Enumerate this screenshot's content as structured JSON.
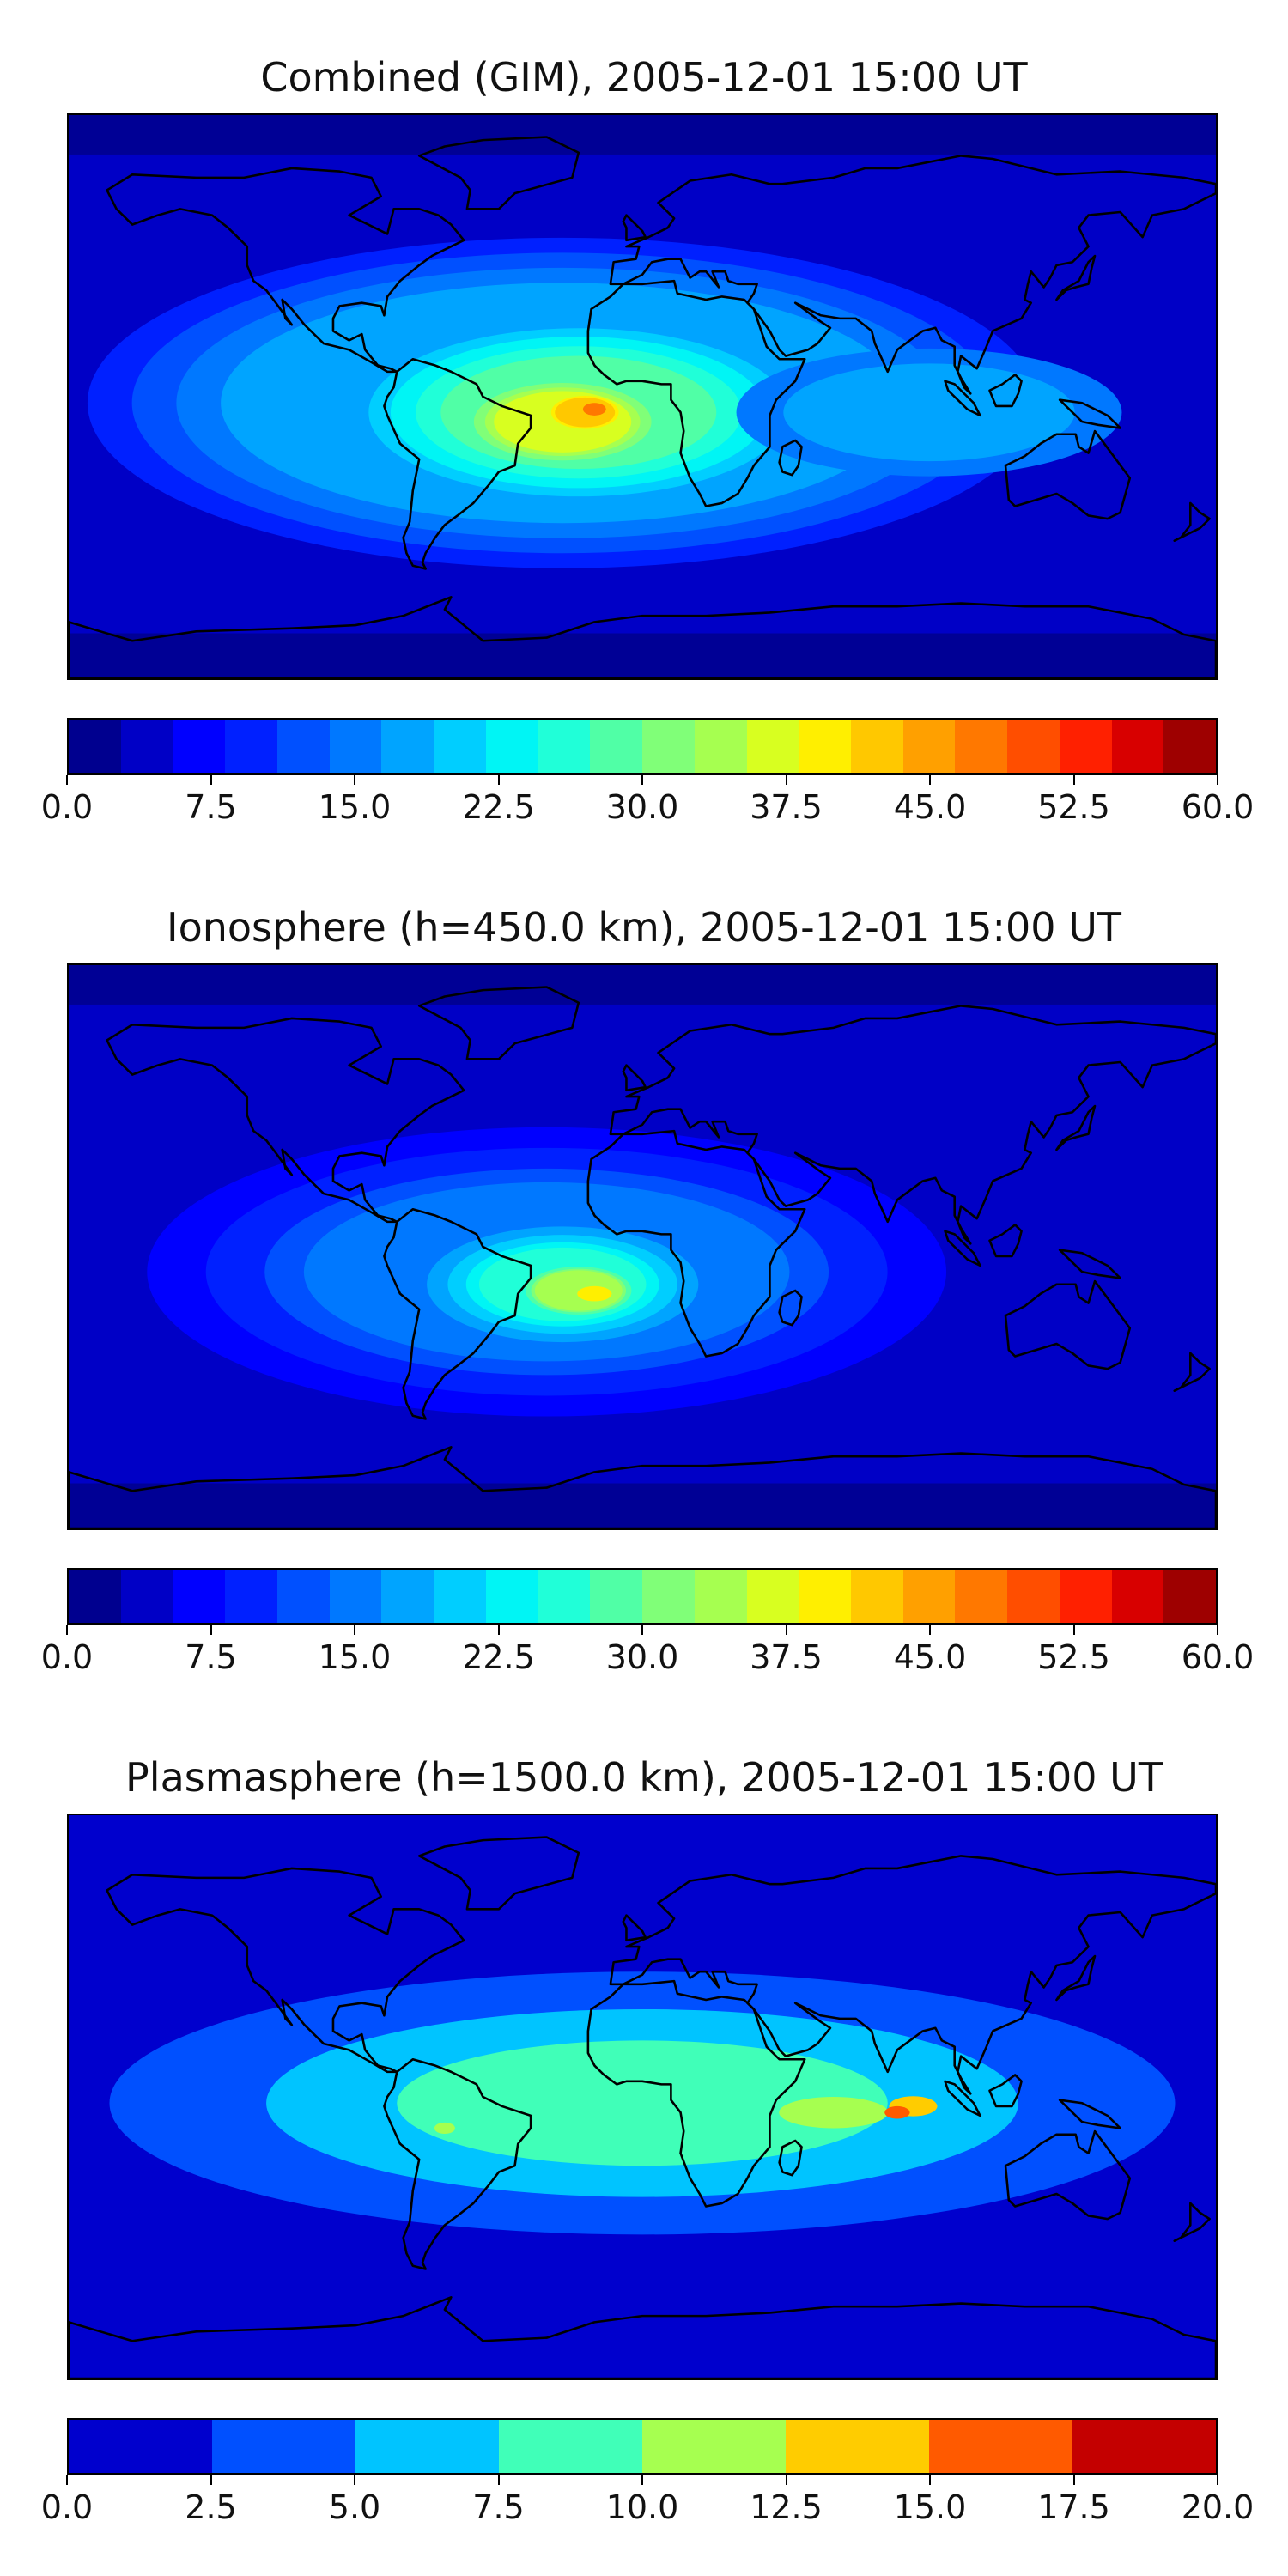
{
  "panels": [
    {
      "title": "Combined (GIM), 2005-12-01 15:00 UT",
      "colorbar": {
        "min": 0,
        "max": 60,
        "tick_labels": [
          "0.0",
          "7.5",
          "15.0",
          "22.5",
          "30.0",
          "37.5",
          "45.0",
          "52.5",
          "60.0"
        ],
        "colors": [
          "#00008f",
          "#0000c6",
          "#0000ff",
          "#0020ff",
          "#0050ff",
          "#0078ff",
          "#00a4ff",
          "#00ceff",
          "#00f5f5",
          "#20ffd8",
          "#50ffa6",
          "#80ff78",
          "#a6ff50",
          "#d8ff20",
          "#ffef00",
          "#ffc800",
          "#ffa000",
          "#ff7800",
          "#ff4e00",
          "#ff2000",
          "#d80000",
          "#9e0000"
        ]
      },
      "hotspots": [
        {
          "name": "south-atlantic-max",
          "lon": -15,
          "lat": -5,
          "value": 47
        },
        {
          "name": "south-america-high",
          "lon": -55,
          "lat": -10,
          "value": 37
        },
        {
          "name": "indian-ocean-moderate",
          "lon": 75,
          "lat": -5,
          "value": 22
        }
      ]
    },
    {
      "title": "Ionosphere  (h=450.0 km), 2005-12-01 15:00 UT",
      "colorbar": {
        "min": 0,
        "max": 60,
        "tick_labels": [
          "0.0",
          "7.5",
          "15.0",
          "22.5",
          "30.0",
          "37.5",
          "45.0",
          "52.5",
          "60.0"
        ],
        "colors": [
          "#00008f",
          "#0000c6",
          "#0000ff",
          "#0020ff",
          "#0050ff",
          "#0078ff",
          "#00a4ff",
          "#00ceff",
          "#00f5f5",
          "#20ffd8",
          "#50ffa6",
          "#80ff78",
          "#a6ff50",
          "#d8ff20",
          "#ffef00",
          "#ffc800",
          "#ffa000",
          "#ff7800",
          "#ff4e00",
          "#ff2000",
          "#d80000",
          "#9e0000"
        ]
      },
      "hotspots": [
        {
          "name": "south-atlantic-max",
          "lon": -15,
          "lat": -15,
          "value": 37
        },
        {
          "name": "south-america-moderate",
          "lon": -60,
          "lat": -20,
          "value": 25
        }
      ]
    },
    {
      "title": "Plasmasphere (h=1500.0 km), 2005-12-01 15:00 UT",
      "colorbar": {
        "min": 0,
        "max": 20,
        "tick_labels": [
          "0.0",
          "2.5",
          "5.0",
          "7.5",
          "10.0",
          "12.5",
          "15.0",
          "17.5",
          "20.0"
        ],
        "colors": [
          "#0000cd",
          "#0050ff",
          "#00c4ff",
          "#40ffb8",
          "#a6ff50",
          "#ffcc00",
          "#ff5a00",
          "#c40000"
        ]
      },
      "hotspots": [
        {
          "name": "indian-ocean-max",
          "lon": 80,
          "lat": -5,
          "value": 16
        },
        {
          "name": "south-america-high",
          "lon": -62,
          "lat": -10,
          "value": 11
        },
        {
          "name": "africa-high",
          "lon": 10,
          "lat": -10,
          "value": 11
        }
      ]
    }
  ]
}
